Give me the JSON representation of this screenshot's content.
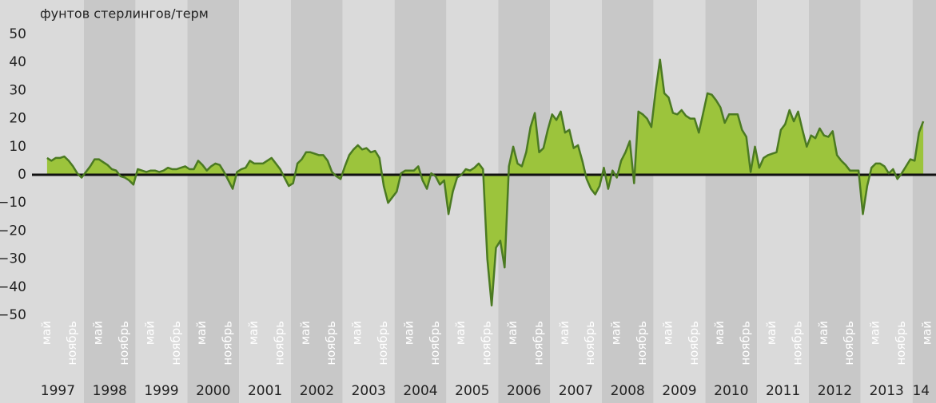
{
  "chart_data": {
    "type": "area",
    "title": "фунтов стерлингов/терм",
    "x": [
      "1997-04",
      "1997-05",
      "1997-06",
      "1997-07",
      "1997-08",
      "1997-09",
      "1997-10",
      "1997-11",
      "1997-12",
      "1998-01",
      "1998-02",
      "1998-03",
      "1998-04",
      "1998-05",
      "1998-06",
      "1998-07",
      "1998-08",
      "1998-09",
      "1998-10",
      "1998-11",
      "1998-12",
      "1999-01",
      "1999-02",
      "1999-03",
      "1999-04",
      "1999-05",
      "1999-06",
      "1999-07",
      "1999-08",
      "1999-09",
      "1999-10",
      "1999-11",
      "1999-12",
      "2000-01",
      "2000-02",
      "2000-03",
      "2000-04",
      "2000-05",
      "2000-06",
      "2000-07",
      "2000-08",
      "2000-09",
      "2000-10",
      "2000-11",
      "2000-12",
      "2001-01",
      "2001-02",
      "2001-03",
      "2001-04",
      "2001-05",
      "2001-06",
      "2001-07",
      "2001-08",
      "2001-09",
      "2001-10",
      "2001-11",
      "2001-12",
      "2002-01",
      "2002-02",
      "2002-03",
      "2002-04",
      "2002-05",
      "2002-06",
      "2002-07",
      "2002-08",
      "2002-09",
      "2002-10",
      "2002-11",
      "2002-12",
      "2003-01",
      "2003-02",
      "2003-03",
      "2003-04",
      "2003-05",
      "2003-06",
      "2003-07",
      "2003-08",
      "2003-09",
      "2003-10",
      "2003-11",
      "2003-12",
      "2004-01",
      "2004-02",
      "2004-03",
      "2004-04",
      "2004-05",
      "2004-06",
      "2004-07",
      "2004-08",
      "2004-09",
      "2004-10",
      "2004-11",
      "2004-12",
      "2005-01",
      "2005-02",
      "2005-03",
      "2005-04",
      "2005-05",
      "2005-06",
      "2005-07",
      "2005-08",
      "2005-09",
      "2005-10",
      "2005-11",
      "2005-12",
      "2006-01",
      "2006-02",
      "2006-03",
      "2006-04",
      "2006-05",
      "2006-06",
      "2006-07",
      "2006-08",
      "2006-09",
      "2006-10",
      "2006-11",
      "2006-12",
      "2007-01",
      "2007-02",
      "2007-03",
      "2007-04",
      "2007-05",
      "2007-06",
      "2007-07",
      "2007-08",
      "2007-09",
      "2007-10",
      "2007-11",
      "2007-12",
      "2008-01",
      "2008-02",
      "2008-03",
      "2008-04",
      "2008-05",
      "2008-06",
      "2008-07",
      "2008-08",
      "2008-09",
      "2008-10",
      "2008-11",
      "2008-12",
      "2009-01",
      "2009-02",
      "2009-03",
      "2009-04",
      "2009-05",
      "2009-06",
      "2009-07",
      "2009-08",
      "2009-09",
      "2009-10",
      "2009-11",
      "2009-12",
      "2010-01",
      "2010-02",
      "2010-03",
      "2010-04",
      "2010-05",
      "2010-06",
      "2010-07",
      "2010-08",
      "2010-09",
      "2010-10",
      "2010-11",
      "2010-12",
      "2011-01",
      "2011-02",
      "2011-03",
      "2011-04",
      "2011-05",
      "2011-06",
      "2011-07",
      "2011-08",
      "2011-09",
      "2011-10",
      "2011-11",
      "2011-12",
      "2012-01",
      "2012-02",
      "2012-03",
      "2012-04",
      "2012-05",
      "2012-06",
      "2012-07",
      "2012-08",
      "2012-09",
      "2012-10",
      "2012-11",
      "2012-12",
      "2013-01",
      "2013-02",
      "2013-03",
      "2013-04",
      "2013-05",
      "2013-06",
      "2013-07",
      "2013-08",
      "2013-09",
      "2013-10",
      "2013-11",
      "2013-12",
      "2014-01",
      "2014-02",
      "2014-03"
    ],
    "values": [
      6,
      5,
      6,
      6,
      6.5,
      5,
      3,
      0.5,
      -1,
      1,
      3,
      5.5,
      5.5,
      4.5,
      3.5,
      2,
      1.5,
      -0.5,
      -1,
      -2,
      -3.5,
      2,
      1.5,
      1,
      1.5,
      1.5,
      1,
      1.5,
      2.5,
      2,
      2,
      2.5,
      3,
      2,
      2,
      5,
      3.5,
      1.5,
      3,
      4,
      3.5,
      1,
      -2,
      -5,
      1,
      2,
      2.5,
      5,
      4,
      4,
      4,
      5,
      6,
      4,
      2,
      -1,
      -4,
      -3,
      4,
      5.5,
      8,
      8,
      7.5,
      7,
      7,
      5,
      1,
      -0.5,
      -1.5,
      3,
      7,
      9,
      10.5,
      9,
      9.5,
      8,
      8.5,
      6,
      -4,
      -10,
      -8,
      -6,
      0.5,
      1.5,
      1.5,
      1.5,
      3,
      -2,
      -5,
      0.5,
      -0.5,
      -3.5,
      -2,
      -14,
      -6,
      -1,
      0,
      2,
      1.5,
      2.5,
      4,
      2,
      -30,
      -46.5,
      -26,
      -23.5,
      -33,
      3,
      10,
      4,
      3,
      8,
      17,
      22,
      8,
      9.5,
      16,
      21.5,
      19.5,
      22.5,
      15,
      16,
      9.5,
      10.5,
      5,
      -1.5,
      -5,
      -7,
      -4,
      2.5,
      -5,
      1.5,
      -1,
      5,
      8,
      12,
      -3,
      22.5,
      21.5,
      20,
      17,
      30,
      41,
      29,
      27.5,
      22,
      21.5,
      23,
      21,
      20,
      20,
      15,
      22,
      29,
      28.5,
      26.5,
      24,
      18.5,
      21.5,
      21.5,
      21.5,
      16,
      13.5,
      1,
      10,
      2.5,
      6,
      7,
      7.5,
      8,
      16,
      18,
      23,
      19,
      22.5,
      16,
      10,
      14,
      13,
      16.5,
      14,
      13.5,
      15.5,
      7,
      5,
      3.5,
      1.5,
      1.5,
      1.5,
      -14,
      -4,
      2.5,
      4,
      4,
      3,
      0.5,
      2,
      -1.5,
      0.5,
      3,
      5.5,
      5,
      15,
      19
    ],
    "fill_color": "#9cc43c",
    "line_color": "#4b7a22",
    "ylim": [
      -50,
      50
    ],
    "yticks": [
      {
        "value": -50,
        "label": "−50"
      },
      {
        "value": -40,
        "label": "−40"
      },
      {
        "value": -30,
        "label": "−30"
      },
      {
        "value": -20,
        "label": "−20"
      },
      {
        "value": -10,
        "label": "−10"
      },
      0,
      10,
      20,
      30,
      40,
      50
    ],
    "year_labels": [
      "1997",
      "1998",
      "1999",
      "2000",
      "2001",
      "2002",
      "2003",
      "2004",
      "2005",
      "2006",
      "2007",
      "2008",
      "2009",
      "2010",
      "2011",
      "2012",
      "2013",
      "14"
    ],
    "month_labels": [
      "май",
      "ноябрь"
    ]
  }
}
